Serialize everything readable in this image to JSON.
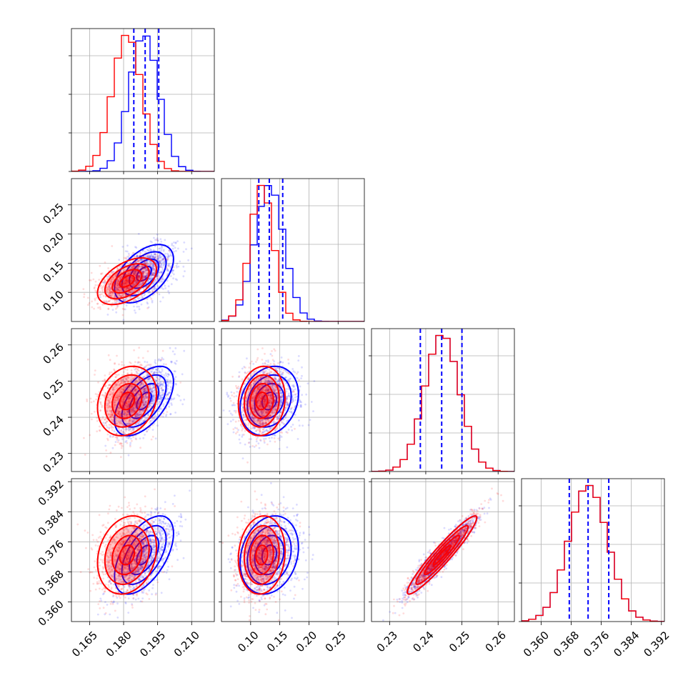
{
  "colors": {
    "series_a": "#ff0000",
    "series_b": "#0000ff",
    "grid": "#b0b0b0"
  },
  "chart_data": {
    "type": "corner",
    "grid": true,
    "series": [
      {
        "color": "#0000ff",
        "means": [
          0.189,
          0.132,
          0.2445,
          0.3725
        ],
        "sds": [
          0.0065,
          0.025,
          0.0048,
          0.0052
        ],
        "corr": [
          [
            1,
            0.5,
            0.55,
            0.55
          ],
          [
            0.5,
            1,
            0.2,
            0.2
          ],
          [
            0.55,
            0.2,
            1,
            0.95
          ],
          [
            0.55,
            0.2,
            0.95,
            1
          ]
        ]
      },
      {
        "color": "#ff0000",
        "means": [
          0.1815,
          0.119,
          0.2445,
          0.3725
        ],
        "sds": [
          0.0065,
          0.02,
          0.0048,
          0.0052
        ],
        "corr": [
          [
            1,
            0.5,
            0.2,
            0.2
          ],
          [
            0.5,
            1,
            0.1,
            0.1
          ],
          [
            0.2,
            0.1,
            1,
            0.95
          ],
          [
            0.2,
            0.1,
            0.95,
            1
          ]
        ]
      }
    ],
    "quantile_lines": {
      "color": "#0000ff",
      "style": "dashed",
      "values": [
        [
          0.1845,
          0.1895,
          0.1955
        ],
        [
          0.114,
          0.132,
          0.155
        ],
        [
          0.2385,
          0.2444,
          0.25
        ],
        [
          0.3675,
          0.3725,
          0.378
        ]
      ]
    },
    "parameters": [
      {
        "range": [
          0.157,
          0.22
        ],
        "ticks": [
          "0.165",
          "0.180",
          "0.195",
          "0.210"
        ]
      },
      {
        "range": [
          0.05,
          0.295
        ],
        "ticks": [
          "0.10",
          "0.15",
          "0.20",
          "0.25"
        ]
      },
      {
        "range": [
          0.225,
          0.2645
        ],
        "ticks": [
          "0.23",
          "0.24",
          "0.25",
          "0.26"
        ]
      },
      {
        "range": [
          0.3548,
          0.3928
        ],
        "ticks": [
          "0.360",
          "0.368",
          "0.376",
          "0.384",
          "0.392"
        ]
      }
    ]
  }
}
